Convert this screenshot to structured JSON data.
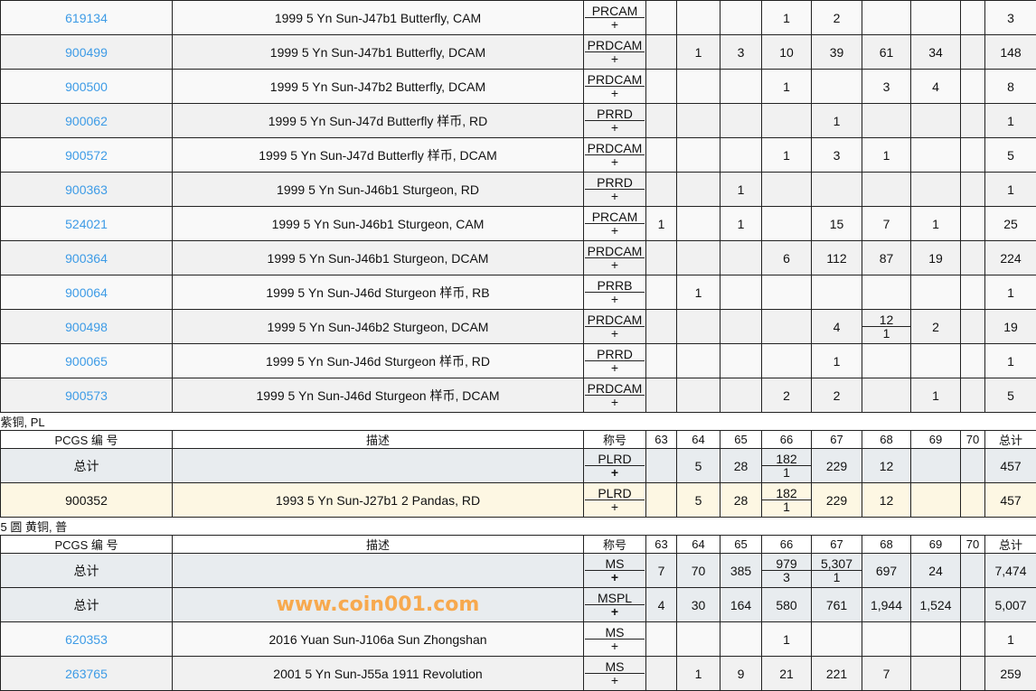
{
  "grade_headers": [
    "63",
    "64",
    "65",
    "66",
    "67",
    "68",
    "69",
    "70"
  ],
  "top_rows": [
    {
      "pcgs": "619134",
      "desc": "1999 5 Yn Sun-J47b1 Butterfly, CAM",
      "code": "PRCAM",
      "plus": "+",
      "grades": [
        null,
        null,
        null,
        "1",
        "2",
        null,
        null,
        null
      ],
      "total": "3"
    },
    {
      "pcgs": "900499",
      "desc": "1999 5 Yn Sun-J47b1 Butterfly, DCAM",
      "code": "PRDCAM",
      "plus": "+",
      "grades": [
        null,
        "1",
        "3",
        "10",
        "39",
        "61",
        "34",
        null
      ],
      "total": "148"
    },
    {
      "pcgs": "900500",
      "desc": "1999 5 Yn Sun-J47b2 Butterfly, DCAM",
      "code": "PRDCAM",
      "plus": "+",
      "grades": [
        null,
        null,
        null,
        "1",
        null,
        "3",
        "4",
        null
      ],
      "total": "8"
    },
    {
      "pcgs": "900062",
      "desc": "1999 5 Yn Sun-J47d Butterfly 样币, RD",
      "code": "PRRD",
      "plus": "+",
      "grades": [
        null,
        null,
        null,
        null,
        "1",
        null,
        null,
        null
      ],
      "total": "1"
    },
    {
      "pcgs": "900572",
      "desc": "1999 5 Yn Sun-J47d Butterfly 样币, DCAM",
      "code": "PRDCAM",
      "plus": "+",
      "grades": [
        null,
        null,
        null,
        "1",
        "3",
        "1",
        null,
        null
      ],
      "total": "5"
    },
    {
      "pcgs": "900363",
      "desc": "1999 5 Yn Sun-J46b1 Sturgeon, RD",
      "code": "PRRD",
      "plus": "+",
      "grades": [
        null,
        null,
        "1",
        null,
        null,
        null,
        null,
        null
      ],
      "total": "1"
    },
    {
      "pcgs": "524021",
      "desc": "1999 5 Yn Sun-J46b1 Sturgeon, CAM",
      "code": "PRCAM",
      "plus": "+",
      "grades": [
        "1",
        null,
        "1",
        null,
        "15",
        "7",
        "1",
        null
      ],
      "total": "25"
    },
    {
      "pcgs": "900364",
      "desc": "1999 5 Yn Sun-J46b1 Sturgeon, DCAM",
      "code": "PRDCAM",
      "plus": "+",
      "grades": [
        null,
        null,
        null,
        "6",
        "112",
        "87",
        "19",
        null
      ],
      "total": "224"
    },
    {
      "pcgs": "900064",
      "desc": "1999 5 Yn Sun-J46d Sturgeon 样币, RB",
      "code": "PRRB",
      "plus": "+",
      "grades": [
        null,
        "1",
        null,
        null,
        null,
        null,
        null,
        null
      ],
      "total": "1"
    },
    {
      "pcgs": "900498",
      "desc": "1999 5 Yn Sun-J46b2 Sturgeon, DCAM",
      "code": "PRDCAM",
      "plus": "+",
      "grades": [
        null,
        null,
        null,
        null,
        "4",
        [
          "12",
          "1"
        ],
        "2",
        null
      ],
      "total": "19"
    },
    {
      "pcgs": "900065",
      "desc": "1999 5 Yn Sun-J46d Sturgeon 样币, RD",
      "code": "PRRD",
      "plus": "+",
      "grades": [
        null,
        null,
        null,
        null,
        "1",
        null,
        null,
        null
      ],
      "total": "1"
    },
    {
      "pcgs": "900573",
      "desc": "1999 5 Yn Sun-J46d Sturgeon 样币, DCAM",
      "code": "PRDCAM",
      "plus": "+",
      "grades": [
        null,
        null,
        null,
        "2",
        "2",
        null,
        "1",
        null
      ],
      "total": "5"
    }
  ],
  "sections": [
    {
      "title": "紫铜, PL",
      "headers": {
        "pcgs": "PCGS 编 号",
        "desc": "描述",
        "code": "称号",
        "total": "总计"
      },
      "rows": [
        {
          "type": "total",
          "pcgs": "总计",
          "desc": "",
          "code": "PLRD",
          "plus": "+",
          "grades": [
            null,
            "5",
            "28",
            [
              "182",
              "1"
            ],
            "229",
            "12",
            null,
            null
          ],
          "total": "457"
        },
        {
          "type": "hl",
          "pcgs": "900352",
          "desc": "1993 5 Yn Sun-J27b1 2 Pandas, RD",
          "code": "PLRD",
          "plus": "+",
          "grades": [
            null,
            "5",
            "28",
            [
              "182",
              "1"
            ],
            "229",
            "12",
            null,
            null
          ],
          "total": "457"
        }
      ]
    },
    {
      "title": "5 圆 黄铜, 普",
      "headers": {
        "pcgs": "PCGS  编  号",
        "desc": "描述",
        "code": "称号",
        "total": "总计"
      },
      "rows": [
        {
          "type": "total",
          "pcgs": "总计",
          "desc": "",
          "code": "MS",
          "plus": "+",
          "grades": [
            "7",
            "70",
            "385",
            [
              "979",
              "3"
            ],
            [
              "5,307",
              "1"
            ],
            "697",
            "24",
            null
          ],
          "total": "7,474"
        },
        {
          "type": "total",
          "pcgs": "总计",
          "desc": "",
          "code": "MSPL",
          "plus": "+",
          "grades": [
            "4",
            "30",
            "164",
            "580",
            "761",
            "1,944",
            "1,524",
            null
          ],
          "total": "5,007"
        },
        {
          "type": "item",
          "pcgs": "620353",
          "desc": "2016 Yuan Sun-J106a Sun Zhongshan",
          "code": "MS",
          "plus": "+",
          "grades": [
            null,
            null,
            null,
            "1",
            null,
            null,
            null,
            null
          ],
          "total": "1"
        },
        {
          "type": "item",
          "pcgs": "263765",
          "desc": "2001 5 Yn Sun-J55a 1911 Revolution",
          "code": "MS",
          "plus": "+",
          "grades": [
            null,
            "1",
            "9",
            "21",
            "221",
            "7",
            null,
            null
          ],
          "total": "259"
        }
      ]
    }
  ],
  "watermark": "www.coin001.com",
  "colors": {
    "link": "#3d9be6",
    "total_row": "#e8ecef",
    "highlight_row": "#fdf7e3"
  }
}
